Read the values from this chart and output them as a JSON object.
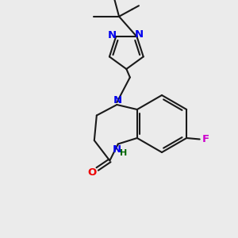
{
  "bg_color": "#ebebeb",
  "bond_color": "#1a1a1a",
  "N_color": "#0000ee",
  "O_color": "#ee0000",
  "F_color": "#cc00cc",
  "H_color": "#006600",
  "line_width": 1.5,
  "dbo": 0.035,
  "xlim": [
    0,
    10
  ],
  "ylim": [
    0,
    10
  ]
}
